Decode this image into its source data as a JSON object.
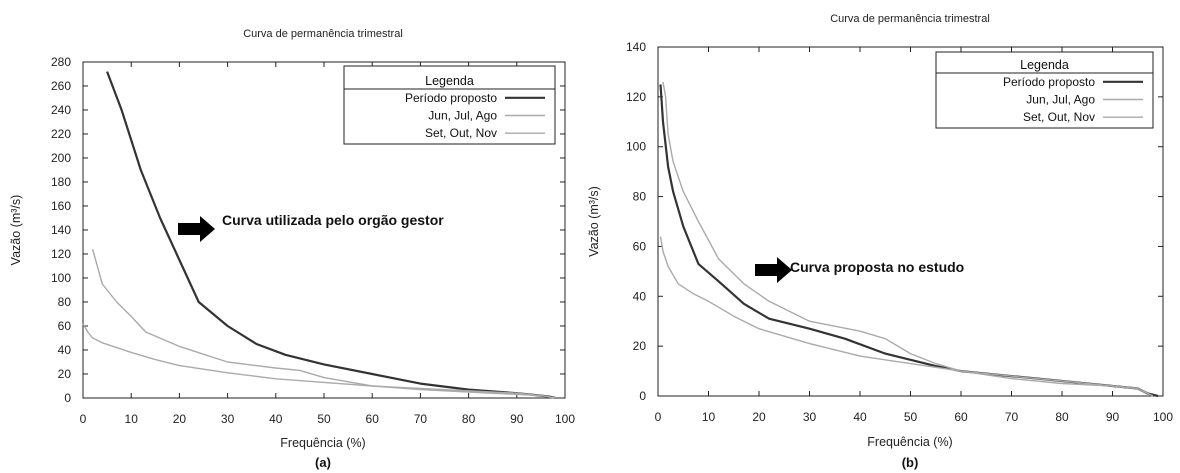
{
  "chart_data": [
    {
      "type": "line",
      "panel_label": "(a)",
      "title": "Curva de permanência trimestral",
      "xlabel": "Frequência (%)",
      "ylabel": "Vazão (m³/s)",
      "xlim": [
        0,
        100
      ],
      "ylim": [
        0,
        280
      ],
      "xticks": [
        0,
        10,
        20,
        30,
        40,
        50,
        60,
        70,
        80,
        90,
        100
      ],
      "yticks": [
        0,
        20,
        40,
        60,
        80,
        100,
        120,
        140,
        160,
        180,
        200,
        220,
        240,
        260,
        280
      ],
      "grid": false,
      "legend": {
        "title": "Legenda",
        "placement": "top-right",
        "entries": [
          "Período proposto",
          "Jun, Jul, Ago",
          "Set, Out, Nov"
        ]
      },
      "series": [
        {
          "name": "Período proposto",
          "color": "#333333",
          "x": [
            5,
            8,
            12,
            16,
            20,
            24,
            30,
            36,
            42,
            50,
            60,
            70,
            80,
            90,
            95,
            97,
            98
          ],
          "y": [
            272,
            240,
            190,
            150,
            115,
            80,
            60,
            45,
            36,
            28,
            20,
            12,
            7,
            4,
            2,
            1,
            0
          ]
        },
        {
          "name": "Jun, Jul, Ago",
          "color": "#aaaaaa",
          "x": [
            2,
            4,
            7,
            10,
            13,
            20,
            30,
            40,
            45,
            50,
            60,
            70,
            80,
            90,
            95,
            98
          ],
          "y": [
            124,
            95,
            80,
            68,
            55,
            43,
            30,
            25,
            23,
            17,
            10,
            7,
            5,
            3,
            2,
            0
          ]
        },
        {
          "name": "Set, Out, Nov",
          "color": "#aaaaaa",
          "x": [
            0,
            1,
            2,
            4,
            7,
            10,
            15,
            20,
            30,
            40,
            50,
            60,
            70,
            80,
            90,
            95,
            98
          ],
          "y": [
            62,
            55,
            50,
            46,
            42,
            38,
            32,
            27,
            21,
            16,
            13,
            10,
            8,
            6,
            4,
            2,
            0
          ]
        }
      ],
      "annotation": "Curva utilizada pelo orgão gestor"
    },
    {
      "type": "line",
      "panel_label": "(b)",
      "title": "Curva de permanência trimestral",
      "xlabel": "Frequência (%)",
      "ylabel": "Vazão (m³/s)",
      "xlim": [
        0,
        100
      ],
      "ylim": [
        0,
        140
      ],
      "xticks": [
        0,
        10,
        20,
        30,
        40,
        50,
        60,
        70,
        80,
        90,
        100
      ],
      "yticks": [
        0,
        20,
        40,
        60,
        80,
        100,
        120,
        140
      ],
      "grid": false,
      "legend": {
        "title": "Legenda",
        "placement": "top-right",
        "entries": [
          "Período proposto",
          "Jun, Jul, Ago",
          "Set, Out, Nov"
        ]
      },
      "series": [
        {
          "name": "Período proposto",
          "color": "#333333",
          "x": [
            0.5,
            1,
            2,
            3,
            5,
            8,
            12,
            17,
            22,
            30,
            37,
            45,
            55,
            60,
            70,
            80,
            90,
            95,
            97,
            99
          ],
          "y": [
            125,
            110,
            92,
            82,
            68,
            53,
            46,
            37,
            31,
            27,
            23,
            17,
            12,
            10,
            8,
            6,
            4,
            3,
            1,
            0
          ]
        },
        {
          "name": "Jun, Jul, Ago",
          "color": "#aaaaaa",
          "x": [
            1,
            1.5,
            2,
            3,
            5,
            8,
            12,
            17,
            22,
            30,
            40,
            45,
            50,
            55,
            60,
            70,
            80,
            90,
            95,
            98
          ],
          "y": [
            126,
            120,
            105,
            94,
            82,
            70,
            55,
            45,
            38,
            30,
            26,
            23,
            17,
            13,
            10,
            7,
            5,
            4,
            3,
            0
          ]
        },
        {
          "name": "Set, Out, Nov",
          "color": "#aaaaaa",
          "x": [
            0.5,
            1,
            2,
            4,
            7,
            10,
            15,
            20,
            30,
            40,
            50,
            60,
            70,
            80,
            90,
            95,
            98
          ],
          "y": [
            64,
            58,
            52,
            45,
            41,
            38,
            32,
            27,
            21,
            16,
            13,
            10,
            8,
            6,
            4,
            3,
            0
          ]
        }
      ],
      "annotation": "Curva proposta no estudo"
    }
  ]
}
